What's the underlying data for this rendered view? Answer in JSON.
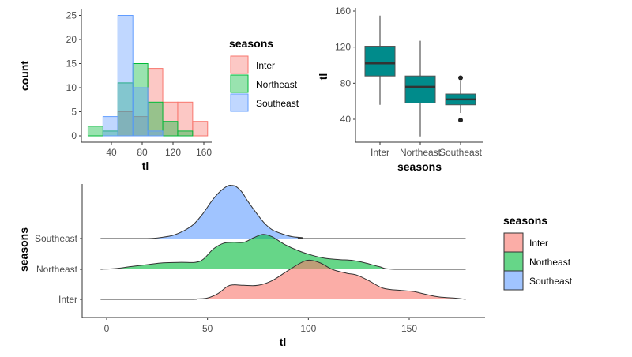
{
  "chart_data": [
    {
      "type": "bar",
      "subtype": "histogram-overlapping",
      "title": "",
      "xlabel": "tl",
      "ylabel": "count",
      "xlim": [
        0,
        170
      ],
      "ylim": [
        0,
        26
      ],
      "xticks": [
        40,
        80,
        120,
        160
      ],
      "yticks": [
        0,
        5,
        10,
        15,
        20,
        25
      ],
      "bin_edges": [
        9.7,
        29.1,
        48.5,
        67.9,
        87.3,
        106.7,
        126.1,
        145.5,
        164.9
      ],
      "legend": {
        "title": "seasons",
        "position": "right"
      },
      "series": [
        {
          "name": "Inter",
          "fill": "#F8766D",
          "values": [
            0,
            0,
            5,
            4,
            14,
            7,
            7,
            3
          ]
        },
        {
          "name": "Northeast",
          "fill": "#00BA38",
          "values": [
            2,
            1,
            11,
            15,
            7,
            3,
            1,
            0
          ]
        },
        {
          "name": "Southeast",
          "fill": "#619CFF",
          "values": [
            0,
            4,
            25,
            10,
            1,
            0,
            0,
            0
          ]
        }
      ],
      "grid": false
    },
    {
      "type": "boxplot",
      "title": "",
      "xlabel": "seasons",
      "ylabel": "tl",
      "ylim": [
        14,
        163
      ],
      "yticks": [
        40,
        80,
        120,
        160
      ],
      "categories": [
        "Inter",
        "Northeast",
        "Southeast"
      ],
      "box_fill": "#008B8B",
      "boxes": [
        {
          "name": "Inter",
          "whisker_low": 56,
          "q1": 88,
          "median": 102,
          "q3": 121,
          "whisker_high": 155,
          "outliers": []
        },
        {
          "name": "Northeast",
          "whisker_low": 21,
          "q1": 58,
          "median": 76,
          "q3": 88,
          "whisker_high": 127,
          "outliers": []
        },
        {
          "name": "Southeast",
          "whisker_low": 47,
          "q1": 56,
          "median": 62,
          "q3": 68,
          "whisker_high": 82,
          "outliers": [
            39,
            86
          ]
        }
      ],
      "grid": false
    },
    {
      "type": "area",
      "subtype": "ridgeline-density",
      "title": "",
      "xlabel": "tl",
      "ylabel": "seasons",
      "xlim": [
        -12,
        187
      ],
      "xticks": [
        0,
        50,
        100,
        150
      ],
      "categories": [
        "Inter",
        "Northeast",
        "Southeast"
      ],
      "legend": {
        "title": "seasons",
        "position": "right"
      },
      "series": [
        {
          "name": "Inter",
          "fill": "#F8766D",
          "x": [
            -3,
            40,
            45,
            50,
            55,
            60,
            63,
            68,
            75,
            82,
            90,
            97,
            101,
            106,
            112,
            119,
            124,
            130,
            137,
            146,
            152,
            158,
            165,
            172,
            178
          ],
          "density": [
            0,
            0,
            0.01,
            0.03,
            0.12,
            0.28,
            0.31,
            0.3,
            0.3,
            0.4,
            0.62,
            0.8,
            0.84,
            0.78,
            0.64,
            0.56,
            0.52,
            0.4,
            0.24,
            0.19,
            0.17,
            0.11,
            0.05,
            0.03,
            0
          ]
        },
        {
          "name": "Northeast",
          "fill": "#00BA38",
          "x": [
            -3,
            5,
            12,
            20,
            28,
            37,
            44,
            48,
            53,
            58,
            63,
            68,
            73,
            77.5,
            82,
            88,
            95,
            102,
            108,
            115,
            122,
            128,
            135,
            143,
            178
          ],
          "density": [
            0,
            0.02,
            0.06,
            0.1,
            0.14,
            0.15,
            0.15,
            0.22,
            0.44,
            0.56,
            0.58,
            0.58,
            0.68,
            0.75,
            0.7,
            0.54,
            0.4,
            0.3,
            0.24,
            0.21,
            0.19,
            0.14,
            0.06,
            0,
            0
          ]
        },
        {
          "name": "Southeast",
          "fill": "#619CFF",
          "x": [
            -3,
            20,
            28,
            33,
            38,
            43,
            48,
            52,
            56,
            60,
            62,
            64,
            67,
            70,
            74,
            78,
            82,
            87,
            92,
            97,
            102,
            178
          ],
          "density": [
            0,
            0,
            0.03,
            0.07,
            0.16,
            0.3,
            0.55,
            0.8,
            1.0,
            1.13,
            1.14,
            1.12,
            1.0,
            0.8,
            0.56,
            0.34,
            0.19,
            0.1,
            0.04,
            0.02,
            0,
            0
          ]
        }
      ],
      "grid": false
    }
  ],
  "legend_top": {
    "title": "seasons",
    "items": [
      "Inter",
      "Northeast",
      "Southeast"
    ]
  },
  "legend_bottom": {
    "title": "seasons",
    "items": [
      "Inter",
      "Northeast",
      "Southeast"
    ]
  }
}
